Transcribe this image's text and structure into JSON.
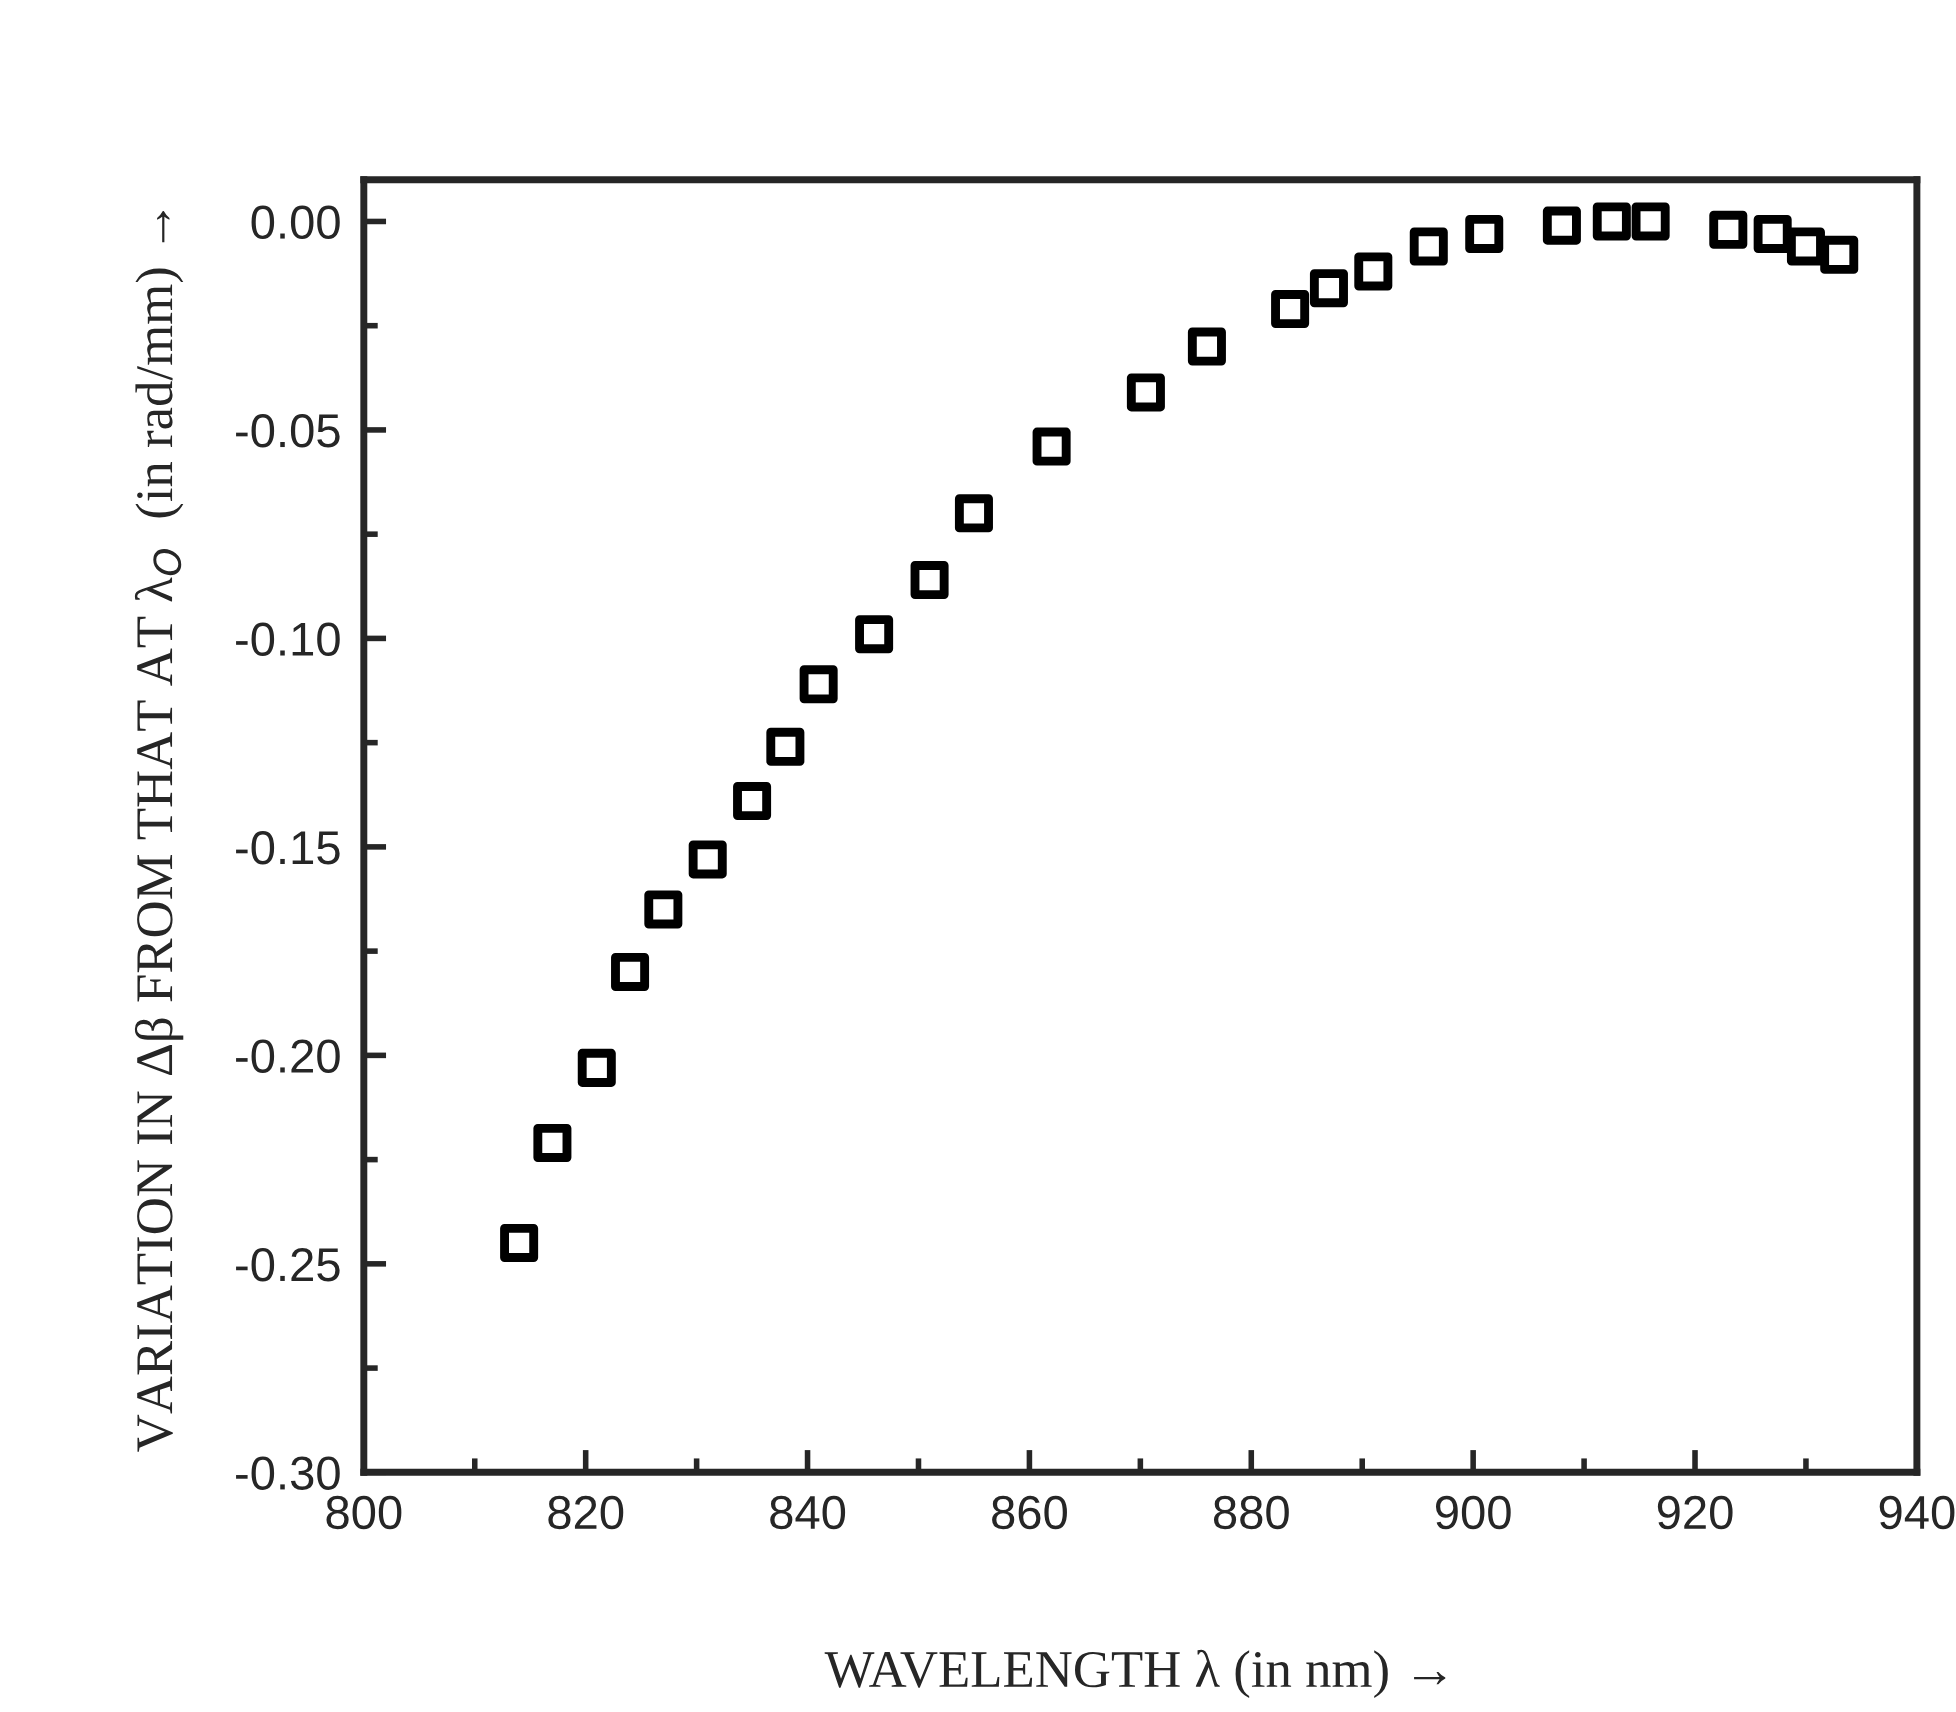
{
  "chart_data": {
    "type": "scatter",
    "xlabel": "WAVELENGTH λ (in nm) →",
    "ylabel": "VARIATION IN Δβ FROM THAT AT λ$_{O}$  (in rad/mm) →",
    "x": [
      814,
      817,
      821,
      824,
      827,
      831,
      835,
      838,
      841,
      846,
      851,
      855,
      862,
      870.5,
      876,
      883.5,
      887,
      891,
      896,
      901,
      908,
      912.5,
      916,
      923,
      927,
      930,
      933
    ],
    "series": [
      {
        "color": "#000000",
        "values": [
          -0.245,
          -0.221,
          -0.203,
          -0.18,
          -0.165,
          -0.153,
          -0.139,
          -0.126,
          -0.111,
          -0.099,
          -0.086,
          -0.07,
          -0.054,
          -0.041,
          -0.03,
          -0.021,
          -0.016,
          -0.012,
          -0.006,
          -0.003,
          -0.001,
          0.0,
          0.0,
          -0.002,
          -0.003,
          -0.006,
          -0.008
        ]
      }
    ],
    "marker": "square",
    "grid": false,
    "legend": false,
    "xlim": [
      800,
      940
    ],
    "ylim": [
      -0.3,
      0.01
    ],
    "xticks": [
      800,
      {
        "value": 810,
        "label": null
      },
      820,
      {
        "value": 830,
        "label": null
      },
      840,
      {
        "value": 850,
        "label": null
      },
      860,
      {
        "value": 870,
        "label": null
      },
      880,
      {
        "value": 890,
        "label": null
      },
      900,
      {
        "value": 910,
        "label": null
      },
      920,
      {
        "value": 930,
        "label": null
      },
      940
    ],
    "yticks": [
      {
        "value": -0.3,
        "label": "-0.30"
      },
      {
        "value": -0.275,
        "label": null
      },
      {
        "value": -0.25,
        "label": "-0.25"
      },
      {
        "value": -0.225,
        "label": null
      },
      {
        "value": -0.2,
        "label": "-0.20"
      },
      {
        "value": -0.175,
        "label": null
      },
      {
        "value": -0.15,
        "label": "-0.15"
      },
      {
        "value": -0.125,
        "label": null
      },
      {
        "value": -0.1,
        "label": "-0.10"
      },
      {
        "value": -0.075,
        "label": null
      },
      {
        "value": -0.05,
        "label": "-0.05"
      },
      {
        "value": -0.025,
        "label": null
      },
      {
        "value": 0.0,
        "label": "0.00"
      }
    ]
  }
}
